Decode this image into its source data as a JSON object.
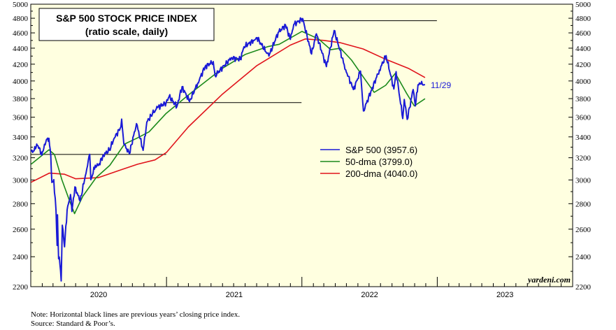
{
  "chart_data": {
    "type": "line",
    "title": "S&P 500 STOCK PRICE INDEX",
    "subtitle": "(ratio scale, daily)",
    "y_scale": "log",
    "ylim": [
      2200,
      5000
    ],
    "y_ticks": [
      2200,
      2400,
      2600,
      2800,
      3000,
      3200,
      3400,
      3600,
      3800,
      4000,
      4200,
      4400,
      4600,
      4800,
      5000
    ],
    "y_tick_labels": [
      "2200",
      "2400",
      "2600",
      "2800",
      "3000",
      "3200",
      "3400",
      "3600",
      "3800",
      "4000",
      "4200",
      "4400",
      "4600",
      "4800",
      "5000"
    ],
    "x_years": [
      "2020",
      "2021",
      "2022",
      "2023"
    ],
    "xlim": [
      "2020-01-01",
      "2023-12-31"
    ],
    "grid": false,
    "legend_position": "center-right",
    "series": [
      {
        "name": "S&P 500 (3957.6)",
        "color": "#1a1ad6",
        "points": [
          [
            "2020-01-02",
            3258
          ],
          [
            "2020-01-10",
            3265
          ],
          [
            "2020-01-17",
            3330
          ],
          [
            "2020-01-24",
            3295
          ],
          [
            "2020-01-31",
            3225
          ],
          [
            "2020-02-07",
            3328
          ],
          [
            "2020-02-14",
            3380
          ],
          [
            "2020-02-19",
            3386
          ],
          [
            "2020-02-24",
            3225
          ],
          [
            "2020-02-27",
            2978
          ],
          [
            "2020-03-03",
            3003
          ],
          [
            "2020-03-09",
            2746
          ],
          [
            "2020-03-12",
            2480
          ],
          [
            "2020-03-13",
            2711
          ],
          [
            "2020-03-16",
            2386
          ],
          [
            "2020-03-18",
            2398
          ],
          [
            "2020-03-23",
            2237
          ],
          [
            "2020-03-26",
            2630
          ],
          [
            "2020-04-01",
            2470
          ],
          [
            "2020-04-08",
            2750
          ],
          [
            "2020-04-17",
            2875
          ],
          [
            "2020-04-21",
            2737
          ],
          [
            "2020-04-29",
            2940
          ],
          [
            "2020-05-13",
            2820
          ],
          [
            "2020-05-27",
            3036
          ],
          [
            "2020-06-08",
            3232
          ],
          [
            "2020-06-11",
            3002
          ],
          [
            "2020-06-23",
            3131
          ],
          [
            "2020-07-02",
            3130
          ],
          [
            "2020-07-15",
            3227
          ],
          [
            "2020-07-31",
            3271
          ],
          [
            "2020-08-12",
            3380
          ],
          [
            "2020-08-31",
            3500
          ],
          [
            "2020-09-02",
            3580
          ],
          [
            "2020-09-08",
            3332
          ],
          [
            "2020-09-23",
            3237
          ],
          [
            "2020-10-12",
            3534
          ],
          [
            "2020-10-30",
            3270
          ],
          [
            "2020-11-09",
            3550
          ],
          [
            "2020-11-24",
            3635
          ],
          [
            "2020-12-08",
            3702
          ],
          [
            "2020-12-31",
            3756
          ],
          [
            "2021-01-08",
            3824
          ],
          [
            "2021-01-29",
            3714
          ],
          [
            "2021-02-12",
            3934
          ],
          [
            "2021-03-04",
            3768
          ],
          [
            "2021-03-26",
            3974
          ],
          [
            "2021-04-15",
            4170
          ],
          [
            "2021-05-07",
            4232
          ],
          [
            "2021-05-12",
            4063
          ],
          [
            "2021-06-25",
            4280
          ],
          [
            "2021-07-19",
            4258
          ],
          [
            "2021-07-29",
            4419
          ],
          [
            "2021-08-27",
            4509
          ],
          [
            "2021-09-02",
            4537
          ],
          [
            "2021-10-04",
            4300
          ],
          [
            "2021-10-29",
            4605
          ],
          [
            "2021-11-18",
            4705
          ],
          [
            "2021-12-01",
            4513
          ],
          [
            "2021-12-10",
            4712
          ],
          [
            "2022-01-03",
            4796
          ],
          [
            "2022-01-27",
            4326
          ],
          [
            "2022-02-09",
            4587
          ],
          [
            "2022-03-08",
            4170
          ],
          [
            "2022-03-29",
            4632
          ],
          [
            "2022-04-29",
            4132
          ],
          [
            "2022-05-20",
            3901
          ],
          [
            "2022-06-08",
            4116
          ],
          [
            "2022-06-16",
            3666
          ],
          [
            "2022-07-08",
            3899
          ],
          [
            "2022-07-29",
            4130
          ],
          [
            "2022-08-16",
            4305
          ],
          [
            "2022-09-06",
            3908
          ],
          [
            "2022-09-12",
            4110
          ],
          [
            "2022-09-30",
            3586
          ],
          [
            "2022-10-04",
            3791
          ],
          [
            "2022-10-12",
            3577
          ],
          [
            "2022-10-28",
            3901
          ],
          [
            "2022-11-03",
            3720
          ],
          [
            "2022-11-10",
            3956
          ],
          [
            "2022-11-18",
            3965
          ],
          [
            "2022-11-29",
            3957.6
          ]
        ]
      },
      {
        "name": "50-dma (3799.0)",
        "color": "#1c8a1c",
        "points": [
          [
            "2020-01-02",
            3140
          ],
          [
            "2020-02-19",
            3275
          ],
          [
            "2020-03-05",
            3230
          ],
          [
            "2020-03-25",
            3000
          ],
          [
            "2020-04-15",
            2820
          ],
          [
            "2020-04-28",
            2720
          ],
          [
            "2020-05-20",
            2860
          ],
          [
            "2020-06-25",
            3020
          ],
          [
            "2020-08-01",
            3130
          ],
          [
            "2020-09-10",
            3330
          ],
          [
            "2020-10-15",
            3390
          ],
          [
            "2020-11-15",
            3450
          ],
          [
            "2020-12-31",
            3640
          ],
          [
            "2021-03-01",
            3840
          ],
          [
            "2021-06-01",
            4150
          ],
          [
            "2021-08-01",
            4320
          ],
          [
            "2021-10-01",
            4420
          ],
          [
            "2021-11-01",
            4450
          ],
          [
            "2022-01-01",
            4620
          ],
          [
            "2022-02-15",
            4520
          ],
          [
            "2022-03-20",
            4380
          ],
          [
            "2022-04-15",
            4400
          ],
          [
            "2022-05-15",
            4250
          ],
          [
            "2022-06-20",
            4020
          ],
          [
            "2022-07-15",
            3870
          ],
          [
            "2022-08-15",
            3950
          ],
          [
            "2022-09-10",
            4090
          ],
          [
            "2022-10-10",
            3860
          ],
          [
            "2022-10-31",
            3720
          ],
          [
            "2022-11-29",
            3799
          ]
        ]
      },
      {
        "name": "200-dma (4040.0)",
        "color": "#e0131b",
        "points": [
          [
            "2020-01-02",
            2980
          ],
          [
            "2020-02-20",
            3060
          ],
          [
            "2020-04-01",
            3050
          ],
          [
            "2020-05-01",
            3010
          ],
          [
            "2020-07-01",
            3020
          ],
          [
            "2020-09-01",
            3090
          ],
          [
            "2020-10-15",
            3140
          ],
          [
            "2020-12-01",
            3180
          ],
          [
            "2021-01-01",
            3250
          ],
          [
            "2021-03-01",
            3500
          ],
          [
            "2021-06-01",
            3850
          ],
          [
            "2021-09-01",
            4180
          ],
          [
            "2021-12-01",
            4440
          ],
          [
            "2022-01-10",
            4520
          ],
          [
            "2022-03-01",
            4500
          ],
          [
            "2022-04-15",
            4470
          ],
          [
            "2022-06-15",
            4390
          ],
          [
            "2022-08-15",
            4260
          ],
          [
            "2022-10-15",
            4150
          ],
          [
            "2022-11-29",
            4040
          ]
        ]
      }
    ],
    "horizontal_lines": [
      {
        "value": 3231,
        "from": "2020-01-01",
        "to": "2020-12-31"
      },
      {
        "value": 3756,
        "from": "2021-01-01",
        "to": "2021-12-31"
      },
      {
        "value": 4766,
        "from": "2022-01-01",
        "to": "2022-12-31"
      }
    ],
    "end_label": "11/29",
    "source_credit": "yardeni.com"
  },
  "notes": {
    "line1": "Note: Horizontal black lines are previous years’ closing price index.",
    "line2": "Source: Standard & Poor’s."
  }
}
